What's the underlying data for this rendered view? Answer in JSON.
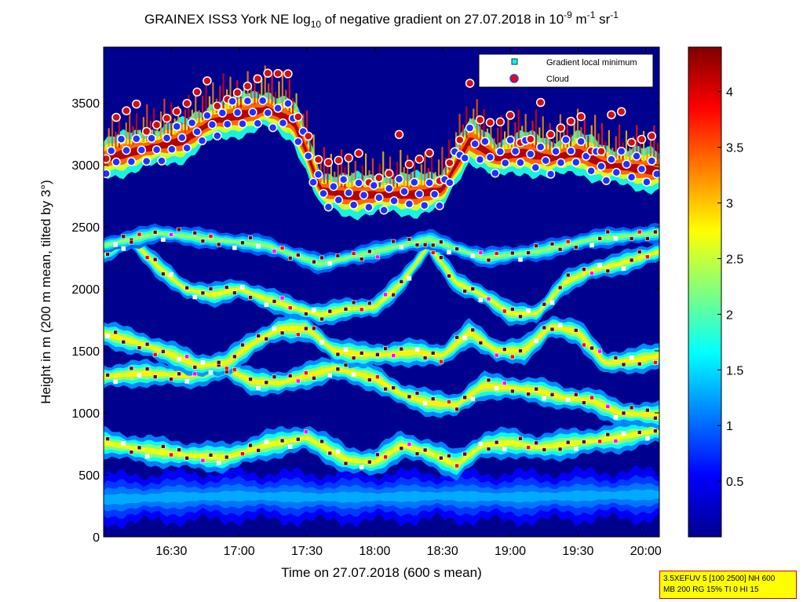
{
  "chart_data": {
    "type": "heatmap",
    "title": {
      "prefix": "GRAINEX ISS3 York NE log",
      "sub1": "10",
      "middle": " of negative gradient on 27.07.2018 in 10",
      "sup1": "-9",
      "unit_m": " m",
      "sup2": "-1",
      "unit_sr": " sr",
      "sup3": "-1"
    },
    "xlabel": "Time on 27.07.2018 (600 s mean)",
    "ylabel": "Height in m (200 m mean, tilted by 3°)",
    "x_range_hours": [
      16.0,
      20.1
    ],
    "xticks": [
      {
        "label": "16:30",
        "hour": 16.5
      },
      {
        "label": "17:00",
        "hour": 17.0
      },
      {
        "label": "17:30",
        "hour": 17.5
      },
      {
        "label": "18:00",
        "hour": 18.0
      },
      {
        "label": "18:30",
        "hour": 18.5
      },
      {
        "label": "19:00",
        "hour": 19.0
      },
      {
        "label": "19:30",
        "hour": 19.5
      },
      {
        "label": "20:00",
        "hour": 20.0
      }
    ],
    "ylim": [
      0,
      3950
    ],
    "yticks": [
      {
        "label": "0",
        "value": 0
      },
      {
        "label": "500",
        "value": 500
      },
      {
        "label": "1000",
        "value": 1000
      },
      {
        "label": "1500",
        "value": 1500
      },
      {
        "label": "2000",
        "value": 2000
      },
      {
        "label": "2500",
        "value": 2500
      },
      {
        "label": "3000",
        "value": 3000
      },
      {
        "label": "3500",
        "value": 3500
      }
    ],
    "colorbar": {
      "range": [
        0,
        4.4
      ],
      "ticks": [
        {
          "label": "0.5",
          "value": 0.5
        },
        {
          "label": "1",
          "value": 1
        },
        {
          "label": "1.5",
          "value": 1.5
        },
        {
          "label": "2",
          "value": 2
        },
        {
          "label": "2.5",
          "value": 2.5
        },
        {
          "label": "3",
          "value": 3
        },
        {
          "label": "3.5",
          "value": 3.5
        },
        {
          "label": "4",
          "value": 4
        }
      ]
    },
    "legend": {
      "placement": "top-right",
      "entries": [
        {
          "label": "Gradient local minimum",
          "color": "#00ffff"
        },
        {
          "label": "Cloud",
          "color": "#ff0000"
        }
      ]
    },
    "layers": [
      {
        "name": "surface aerosol",
        "points": [
          [
            16.0,
            300
          ],
          [
            16.5,
            320
          ],
          [
            17.0,
            330
          ],
          [
            17.5,
            320
          ],
          [
            18.0,
            320
          ],
          [
            18.5,
            330
          ],
          [
            19.0,
            320
          ],
          [
            19.5,
            330
          ],
          [
            20.1,
            340
          ]
        ],
        "thickness": 160,
        "value": 1.3
      },
      {
        "name": "lower layer",
        "points": [
          [
            16.0,
            760
          ],
          [
            16.3,
            700
          ],
          [
            16.6,
            660
          ],
          [
            16.9,
            640
          ],
          [
            17.2,
            740
          ],
          [
            17.5,
            800
          ],
          [
            17.8,
            620
          ],
          [
            18.0,
            600
          ],
          [
            18.2,
            740
          ],
          [
            18.4,
            680
          ],
          [
            18.6,
            580
          ],
          [
            18.8,
            740
          ],
          [
            19.0,
            760
          ],
          [
            19.2,
            720
          ],
          [
            19.5,
            760
          ],
          [
            19.8,
            800
          ],
          [
            20.1,
            860
          ]
        ],
        "thickness": 90,
        "value": 2.7
      },
      {
        "name": "middle layer",
        "points": [
          [
            16.0,
            1290
          ],
          [
            16.3,
            1320
          ],
          [
            16.6,
            1300
          ],
          [
            16.9,
            1360
          ],
          [
            17.1,
            1250
          ],
          [
            17.3,
            1240
          ],
          [
            17.5,
            1300
          ],
          [
            17.7,
            1360
          ],
          [
            18.0,
            1280
          ],
          [
            18.2,
            1150
          ],
          [
            18.4,
            1080
          ],
          [
            18.6,
            1060
          ],
          [
            18.8,
            1220
          ],
          [
            19.0,
            1200
          ],
          [
            19.2,
            1180
          ],
          [
            19.4,
            1120
          ],
          [
            19.6,
            1100
          ],
          [
            19.8,
            1000
          ],
          [
            20.1,
            980
          ]
        ],
        "thickness": 80,
        "value": 2.8
      },
      {
        "name": "upper middle layer",
        "points": [
          [
            16.0,
            1640
          ],
          [
            16.3,
            1550
          ],
          [
            16.5,
            1470
          ],
          [
            16.7,
            1380
          ],
          [
            16.9,
            1400
          ],
          [
            17.1,
            1560
          ],
          [
            17.3,
            1680
          ],
          [
            17.5,
            1680
          ],
          [
            17.7,
            1500
          ],
          [
            17.9,
            1470
          ],
          [
            18.1,
            1470
          ],
          [
            18.3,
            1490
          ],
          [
            18.5,
            1460
          ],
          [
            18.7,
            1650
          ],
          [
            18.9,
            1500
          ],
          [
            19.1,
            1500
          ],
          [
            19.3,
            1700
          ],
          [
            19.5,
            1650
          ],
          [
            19.7,
            1400
          ],
          [
            19.9,
            1420
          ],
          [
            20.1,
            1460
          ]
        ],
        "thickness": 80,
        "value": 2.8
      },
      {
        "name": "upper layer",
        "points": [
          [
            16.0,
            2300
          ],
          [
            16.2,
            2400
          ],
          [
            16.4,
            2180
          ],
          [
            16.6,
            2000
          ],
          [
            16.8,
            1950
          ],
          [
            17.0,
            2000
          ],
          [
            17.2,
            1920
          ],
          [
            17.4,
            1850
          ],
          [
            17.6,
            1790
          ],
          [
            17.8,
            1840
          ],
          [
            18.0,
            1850
          ],
          [
            18.2,
            2050
          ],
          [
            18.4,
            2350
          ],
          [
            18.6,
            2050
          ],
          [
            18.8,
            1950
          ],
          [
            19.0,
            1800
          ],
          [
            19.2,
            1800
          ],
          [
            19.4,
            2050
          ],
          [
            19.6,
            2150
          ],
          [
            19.8,
            2200
          ],
          [
            20.1,
            2300
          ]
        ],
        "thickness": 70,
        "value": 2.7
      },
      {
        "name": "residual layer",
        "points": [
          [
            16.0,
            2350
          ],
          [
            16.4,
            2450
          ],
          [
            16.8,
            2400
          ],
          [
            17.2,
            2350
          ],
          [
            17.6,
            2200
          ],
          [
            18.0,
            2300
          ],
          [
            18.4,
            2400
          ],
          [
            18.8,
            2250
          ],
          [
            19.2,
            2300
          ],
          [
            19.6,
            2400
          ],
          [
            20.1,
            2450
          ]
        ],
        "thickness": 60,
        "value": 2.3
      },
      {
        "name": "cloud layer",
        "points": [
          [
            16.0,
            3050
          ],
          [
            16.2,
            3100
          ],
          [
            16.4,
            3150
          ],
          [
            16.6,
            3200
          ],
          [
            16.8,
            3350
          ],
          [
            17.0,
            3400
          ],
          [
            17.2,
            3450
          ],
          [
            17.4,
            3350
          ],
          [
            17.5,
            3100
          ],
          [
            17.6,
            2800
          ],
          [
            17.8,
            2750
          ],
          [
            18.0,
            2760
          ],
          [
            18.3,
            2760
          ],
          [
            18.5,
            2800
          ],
          [
            18.7,
            3200
          ],
          [
            18.9,
            3050
          ],
          [
            19.1,
            3100
          ],
          [
            19.3,
            3050
          ],
          [
            19.5,
            3100
          ],
          [
            19.7,
            3000
          ],
          [
            20.1,
            2950
          ]
        ],
        "thickness": 130,
        "value": 4.2
      }
    ]
  }
}
